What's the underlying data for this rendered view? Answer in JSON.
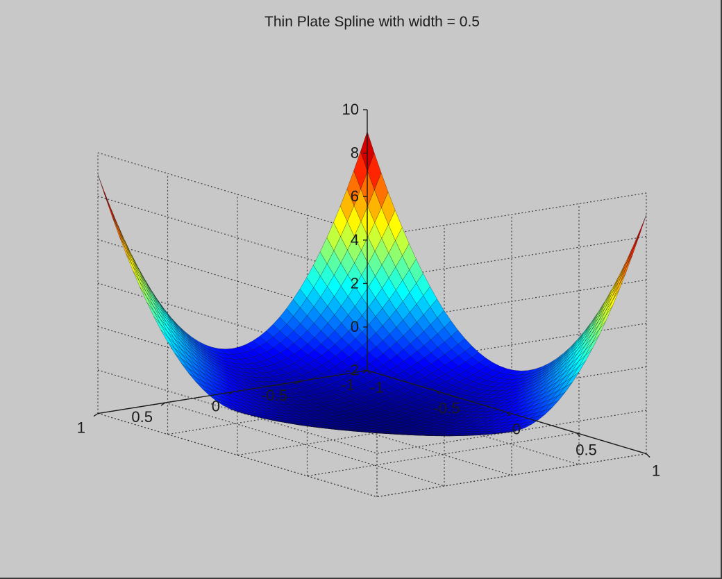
{
  "chart_data": {
    "type": "surface",
    "title": "Thin Plate Spline with width = 0.5",
    "xlabel": "",
    "ylabel": "",
    "zlabel": "",
    "xlim": [
      -1,
      1
    ],
    "ylim": [
      -1,
      1
    ],
    "zlim": [
      -2,
      10
    ],
    "xticks": [
      "-1",
      "-0.5",
      "0",
      "0.5",
      "1"
    ],
    "yticks": [
      "-1",
      "-0.5",
      "0",
      "0.5",
      "1"
    ],
    "zticks": [
      "-2",
      "0",
      "2",
      "4",
      "6",
      "8",
      "10"
    ],
    "grid": true,
    "colormap": "jet",
    "background_color": "#c8c8c8",
    "surface": {
      "description_formula": "z ≈ r² · log(r / 0.5) on [-1,1]²",
      "center_value": -1.4,
      "edge_midpoint_value": 0.0,
      "corner_value": 9.0,
      "grid_resolution": 41
    }
  }
}
